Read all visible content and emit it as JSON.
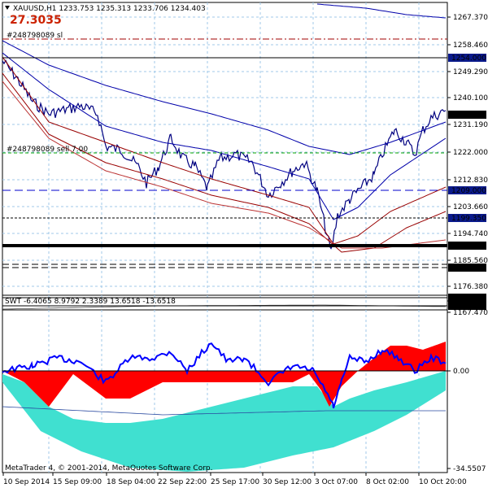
{
  "header": {
    "symbol_line": "XAUUSD,H1  1233.753 1235.313 1233.706 1234.403",
    "big_value": "27.3035",
    "big_value_color": "#cc2200"
  },
  "order_labels": {
    "sl": "#248798089 sl",
    "sell": "#248798089 sell 7.00"
  },
  "price_axis": {
    "ticks": [
      "1267.370",
      "1258.460",
      "1249.290",
      "1240.100",
      "1231.190",
      "1222.000",
      "1212.830",
      "1203.660",
      "1194.740",
      "1185.560",
      "1176.380",
      "1167.470"
    ],
    "tags": [
      {
        "text": "1254.000",
        "bg": "#0a1a8c",
        "fg": "#ffffff"
      },
      {
        "text": "1234.403",
        "bg": "#000000",
        "fg": "#ffffff"
      },
      {
        "text": "1209.000",
        "bg": "#0a1a8c",
        "fg": "#ffffff"
      },
      {
        "text": "1199.350",
        "bg": "#0a1a8c",
        "fg": "#ffffff"
      },
      {
        "text": "1190.000",
        "bg": "#000000",
        "fg": "#ffffff"
      },
      {
        "text": "1182.500",
        "bg": "#000000",
        "fg": "#ffffff"
      },
      {
        "text": "1173.000",
        "bg": "#000000",
        "fg": "#ffffff"
      },
      {
        "text": "1169.500",
        "bg": "#000000",
        "fg": "#ffffff"
      }
    ]
  },
  "indicator": {
    "label": "SWT -6.4065 8.9792 2.3389 13.6518 -13.6518",
    "ticks": [
      "17.5289",
      "0.00",
      "-34.5507"
    ],
    "colors": {
      "red": "#ff0000",
      "cyan": "#40e0d0",
      "blue": "#0000ff"
    }
  },
  "time_axis": [
    "10 Sep 2014",
    "15 Sep 09:00",
    "18 Sep 04:00",
    "22 Sep 22:00",
    "25 Sep 17:00",
    "30 Sep 12:00",
    "3 Oct 07:00",
    "8 Oct 02:00",
    "10 Oct 20:00"
  ],
  "footer": {
    "copyright": "MetaTrader 4, © 2001-2014, MetaQuotes Software Corp."
  },
  "colors": {
    "grid": "#a0c8e8",
    "price": "#000080",
    "ma_red": "#990000",
    "ma_blue": "#0000aa"
  }
}
